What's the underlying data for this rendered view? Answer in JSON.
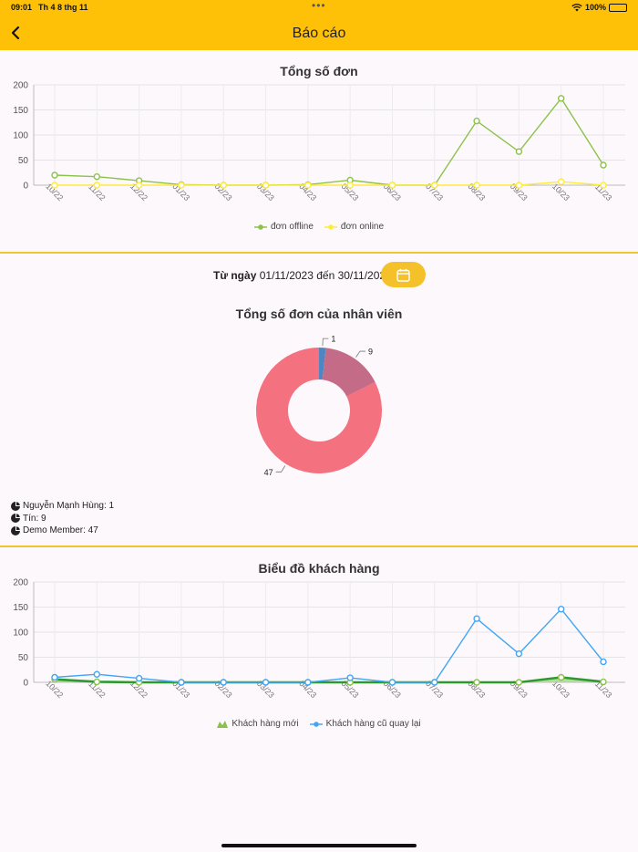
{
  "status_bar": {
    "time": "09:01",
    "date": "Th 4 8 thg 11",
    "battery": "100%"
  },
  "header": {
    "title": "Báo cáo"
  },
  "date_filter": {
    "from_label": "Từ ngày",
    "range": "01/11/2023 đến 30/11/2023"
  },
  "staff_list": [
    {
      "text": "Nguyễn Mạnh Hùng: 1"
    },
    {
      "text": "Tín: 9"
    },
    {
      "text": "Demo Member: 47"
    }
  ],
  "colors": {
    "accent": "#ffc107",
    "offline": "#8bc34a",
    "online": "#ffeb3b",
    "returning": "#42a5f5",
    "new": "#2e9a2e"
  },
  "chart_data": [
    {
      "type": "line",
      "title": "Tổng số đơn",
      "categories": [
        "10/22",
        "11/22",
        "12/22",
        "01/23",
        "02/23",
        "03/23",
        "04/23",
        "05/23",
        "06/23",
        "07/23",
        "08/23",
        "09/23",
        "10/23",
        "11/23"
      ],
      "ylim": [
        0,
        200
      ],
      "yticks": [
        0,
        50,
        100,
        150,
        200
      ],
      "grid": true,
      "legend": "bottom",
      "series": [
        {
          "name": "đơn offline",
          "color": "#8bc34a",
          "values": [
            20,
            17,
            9,
            1,
            0,
            0,
            1,
            10,
            0,
            0,
            128,
            67,
            173,
            40
          ]
        },
        {
          "name": "đơn online",
          "color": "#ffeb3b",
          "values": [
            0,
            0,
            0,
            0,
            0,
            0,
            0,
            0,
            0,
            0,
            0,
            0,
            7,
            0
          ]
        }
      ]
    },
    {
      "type": "pie",
      "title": "Tổng số đơn của nhân viên",
      "donut": true,
      "slices": [
        {
          "label": "1",
          "value": 1,
          "color": "#4f86c2"
        },
        {
          "label": "9",
          "value": 9,
          "color": "#c46b87"
        },
        {
          "label": "47",
          "value": 47,
          "color": "#f4727f"
        }
      ]
    },
    {
      "type": "line",
      "title": "Biểu đồ khách hàng",
      "categories": [
        "10/22",
        "11/22",
        "12/22",
        "01/23",
        "02/23",
        "03/23",
        "04/23",
        "05/23",
        "06/23",
        "07/23",
        "08/23",
        "09/23",
        "10/23",
        "11/23"
      ],
      "ylim": [
        0,
        200
      ],
      "yticks": [
        0,
        50,
        100,
        150,
        200
      ],
      "grid": true,
      "legend": "bottom",
      "series": [
        {
          "name": "Khách hàng mới",
          "color": "#2e9a2e",
          "fill": "#a8d98a",
          "values": [
            6,
            1,
            0,
            0,
            0,
            0,
            0,
            0,
            0,
            0,
            0,
            0,
            10,
            1
          ]
        },
        {
          "name": "Khách hàng cũ quay lại",
          "color": "#42a5f5",
          "values": [
            10,
            16,
            8,
            0,
            0,
            0,
            0,
            9,
            0,
            0,
            127,
            57,
            146,
            41
          ]
        }
      ]
    }
  ]
}
